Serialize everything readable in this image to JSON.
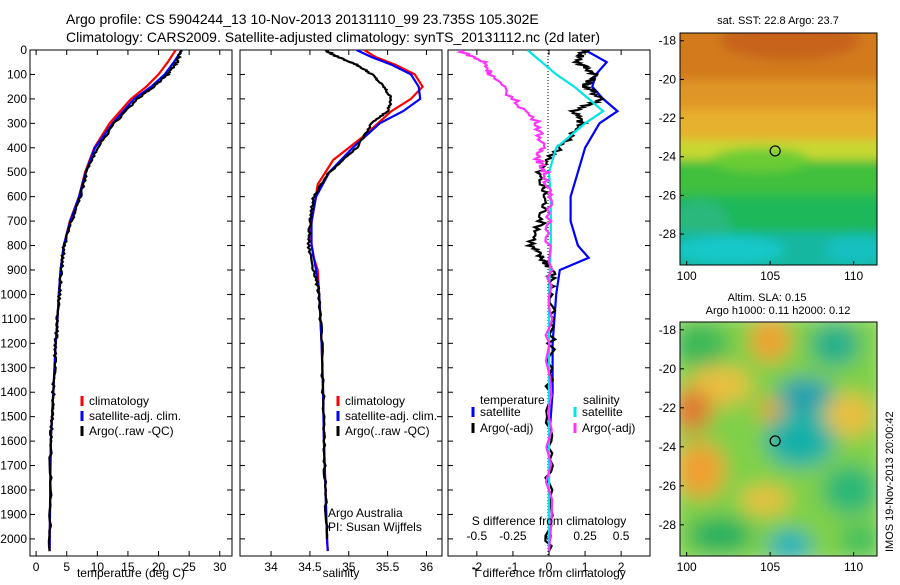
{
  "header": {
    "line1": "Argo profile: CS 5904244_13 10-Nov-2013 20131110_99 23.735S 105.302E",
    "line2": "Climatology: CARS2009. Satellite-adjusted climatology: synTS_20131112.nc (2d later)"
  },
  "colors": {
    "climatology": "#ff0000",
    "satellite": "#0000ff",
    "argo": "#000000",
    "cyan": "#00e5e5",
    "magenta": "#ff33ff"
  },
  "legend_ts": [
    "climatology",
    "satellite-adj. clim.",
    "Argo(..raw -QC)"
  ],
  "legend_diff": {
    "temp_title": "temperature",
    "sal_title": "salinity",
    "temp_items": [
      "satellite",
      "Argo(-adj)"
    ],
    "sal_items": [
      "satellite",
      "Argo(-adj)"
    ]
  },
  "credit": {
    "line1": "Argo Australia",
    "line2": "PI: Susan Wijffels"
  },
  "map1": {
    "title": "sat. SST: 22.8  Argo: 23.7"
  },
  "map2": {
    "title1": "Altim. SLA: 0.15",
    "title2": "Argo h1000: 0.11 h2000: 0.12"
  },
  "stamp": "IMOS 19-Nov-2013 20:00:42",
  "chart_data": [
    {
      "type": "line",
      "xlabel": "temperature (deg C)",
      "xlim": [
        -1,
        32
      ],
      "ylim": [
        2070,
        0
      ],
      "xticks": [
        0,
        5,
        10,
        15,
        20,
        25,
        30
      ],
      "yticks": [
        0,
        100,
        200,
        300,
        400,
        500,
        600,
        700,
        800,
        900,
        1000,
        1100,
        1200,
        1300,
        1400,
        1500,
        1600,
        1700,
        1800,
        1900,
        2000
      ],
      "series": [
        {
          "name": "climatology",
          "x": [
            22.8,
            21.5,
            20.0,
            18.0,
            15.5,
            12.0,
            9.5,
            8.0,
            7.0,
            5.5,
            4.5,
            4.0,
            3.7,
            3.5,
            3.2,
            3.0,
            2.8,
            2.6,
            2.4,
            2.3,
            2.2
          ],
          "y": [
            0,
            50,
            100,
            150,
            200,
            300,
            400,
            500,
            600,
            700,
            800,
            900,
            1000,
            1100,
            1200,
            1300,
            1400,
            1500,
            1600,
            1800,
            2050
          ]
        },
        {
          "name": "satellite-adj. clim.",
          "x": [
            23.8,
            22.5,
            21.0,
            18.8,
            16.0,
            12.5,
            9.6,
            8.1,
            7.0,
            5.6,
            4.5,
            4.0,
            3.7,
            3.5,
            3.2,
            3.0,
            2.8,
            2.6,
            2.4,
            2.3,
            2.2
          ],
          "y": [
            0,
            50,
            100,
            150,
            200,
            300,
            400,
            500,
            600,
            700,
            800,
            900,
            1000,
            1100,
            1200,
            1300,
            1400,
            1500,
            1600,
            1800,
            2050
          ]
        },
        {
          "name": "Argo(..raw -QC)",
          "x": [
            23.7,
            23.0,
            21.5,
            19.2,
            16.5,
            12.8,
            10.0,
            8.3,
            7.2,
            5.8,
            4.6,
            4.1,
            3.8,
            3.5,
            3.2,
            3.0,
            2.8,
            2.6,
            2.4,
            2.3,
            2.2
          ],
          "y": [
            0,
            50,
            100,
            150,
            200,
            300,
            400,
            500,
            600,
            700,
            800,
            900,
            1000,
            1100,
            1200,
            1300,
            1400,
            1500,
            1600,
            1800,
            2050
          ]
        }
      ]
    },
    {
      "type": "line",
      "xlabel": "salinity",
      "xlim": [
        33.6,
        36.2
      ],
      "ylim": [
        2070,
        0
      ],
      "xticks": [
        34,
        34.5,
        35,
        35.5,
        36
      ],
      "xtick_labels": [
        "34",
        "34.5",
        "35",
        "35.5",
        "36"
      ],
      "series": [
        {
          "name": "climatology",
          "x": [
            35.2,
            35.35,
            35.6,
            35.85,
            35.95,
            35.8,
            35.55,
            35.2,
            34.8,
            34.6,
            34.55,
            34.5,
            34.55,
            34.6,
            34.62,
            34.65,
            34.67,
            34.68,
            34.7,
            34.72,
            34.73
          ],
          "y": [
            0,
            30,
            60,
            100,
            150,
            200,
            250,
            350,
            450,
            550,
            650,
            750,
            850,
            900,
            1000,
            1200,
            1400,
            1600,
            1800,
            2000,
            2050
          ]
        },
        {
          "name": "satellite-adj. clim.",
          "x": [
            35.1,
            35.3,
            35.55,
            35.8,
            35.9,
            35.92,
            35.7,
            35.4,
            35.05,
            34.75,
            34.58,
            34.52,
            34.52,
            34.58,
            34.62,
            34.65,
            34.67,
            34.68,
            34.7,
            34.72,
            34.73
          ],
          "y": [
            0,
            30,
            60,
            100,
            150,
            200,
            250,
            300,
            400,
            500,
            600,
            700,
            800,
            900,
            1000,
            1200,
            1400,
            1600,
            1800,
            2000,
            2050
          ]
        },
        {
          "name": "Argo(..raw -QC)",
          "x": [
            34.7,
            34.8,
            35.1,
            35.3,
            35.45,
            35.55,
            35.5,
            35.3,
            35.1,
            34.75,
            34.55,
            34.5,
            34.48,
            34.55,
            34.62,
            34.65,
            34.67,
            34.68,
            34.7,
            34.72
          ],
          "y": [
            0,
            20,
            60,
            100,
            150,
            200,
            250,
            300,
            400,
            500,
            600,
            700,
            800,
            900,
            1000,
            1200,
            1400,
            1600,
            1800,
            2000
          ]
        }
      ]
    },
    {
      "type": "line",
      "xlabel": "T difference from climatology",
      "top_label": "S difference from climatology",
      "xlim": [
        -2.8,
        2.8
      ],
      "ylim": [
        2070,
        0
      ],
      "xticks": [
        -2,
        -1,
        0,
        1,
        2
      ],
      "top_ticks": [
        -0.5,
        -0.25,
        0,
        0.25,
        0.5
      ],
      "top_tick_labels": [
        "-0.5",
        "-0.25",
        "0",
        "0.25",
        "0.5"
      ],
      "series": [
        {
          "name": "temperature satellite",
          "x": [
            1.0,
            1.6,
            1.3,
            1.2,
            1.5,
            1.9,
            1.4,
            1.0,
            0.8,
            0.6,
            0.6,
            0.8,
            1.1,
            0.3,
            0.2,
            0.1,
            0.1,
            0.0,
            0.0,
            0.0
          ],
          "y": [
            0,
            50,
            100,
            150,
            200,
            250,
            300,
            400,
            500,
            600,
            700,
            800,
            850,
            900,
            1000,
            1200,
            1400,
            1600,
            1800,
            2050
          ]
        },
        {
          "name": "temperature Argo(-adj)",
          "x": [
            1.0,
            0.8,
            1.3,
            1.0,
            1.5,
            0.7,
            0.9,
            0.3,
            -0.3,
            -0.1,
            -0.2,
            -0.5,
            -0.2,
            0.1,
            0.05,
            0.05,
            0.0,
            0.0,
            0.0
          ],
          "y": [
            0,
            50,
            100,
            150,
            200,
            250,
            300,
            400,
            500,
            600,
            700,
            800,
            850,
            900,
            1000,
            1200,
            1500,
            1800,
            2050
          ]
        },
        {
          "name": "salinity satellite",
          "x": [
            -0.6,
            -0.2,
            0.2,
            0.7,
            1.1,
            1.5,
            1.0,
            0.2,
            0.0,
            0.05,
            0.05,
            0.0,
            0.0,
            0.0
          ],
          "y": [
            0,
            50,
            100,
            150,
            200,
            250,
            300,
            400,
            500,
            600,
            800,
            1000,
            1500,
            2050
          ]
        },
        {
          "name": "salinity Argo(-adj)",
          "x": [
            -2.5,
            -1.8,
            -1.6,
            -1.0,
            -0.3,
            -0.2,
            -0.3,
            -0.1,
            0.0,
            0.0,
            0.0,
            0.0
          ],
          "y": [
            0,
            50,
            100,
            200,
            300,
            400,
            450,
            500,
            600,
            800,
            1200,
            2050
          ]
        }
      ]
    },
    {
      "type": "heatmap",
      "title": "sat. SST: 22.8  Argo: 23.7",
      "xlim": [
        99.6,
        111.4
      ],
      "ylim": [
        -29.6,
        -17.6
      ],
      "xticks": [
        100,
        105,
        110
      ],
      "yticks": [
        -18,
        -20,
        -22,
        -24,
        -26,
        -28
      ],
      "marker": [
        105.3,
        -23.7
      ]
    },
    {
      "type": "heatmap",
      "title": "Altim. SLA: 0.15",
      "xlim": [
        99.6,
        111.4
      ],
      "ylim": [
        -29.6,
        -17.6
      ],
      "xticks": [
        100,
        105,
        110
      ],
      "yticks": [
        -18,
        -20,
        -22,
        -24,
        -26,
        -28
      ],
      "marker": [
        105.3,
        -23.7
      ]
    }
  ]
}
